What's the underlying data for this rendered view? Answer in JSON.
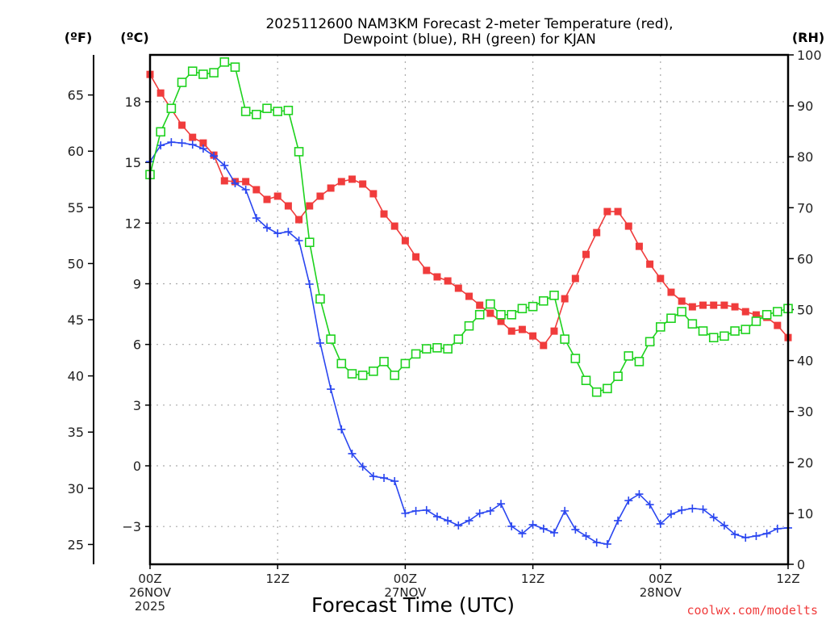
{
  "chart_data": {
    "type": "line",
    "title_lines": [
      "2025112600 NAM3KM Forecast 2-meter Temperature (red),",
      "Dewpoint (blue), RH (green) for KJAN"
    ],
    "xlabel": "Forecast Time (UTC)",
    "credit": "coolwx.com/modelts",
    "axis_units": {
      "left_outer": "(ºF)",
      "left_inner": "(ºC)",
      "right": "(RH)"
    },
    "x": {
      "unit": "hours since 2025-11-26 00Z",
      "range": [
        0,
        60
      ],
      "ticks": [
        {
          "hour": 0,
          "lines": [
            "00Z",
            "26NOV",
            "2025"
          ]
        },
        {
          "hour": 12,
          "lines": [
            "12Z"
          ]
        },
        {
          "hour": 24,
          "lines": [
            "00Z",
            "27NOV"
          ]
        },
        {
          "hour": 36,
          "lines": [
            "12Z"
          ]
        },
        {
          "hour": 48,
          "lines": [
            "00Z",
            "28NOV"
          ]
        },
        {
          "hour": 60,
          "lines": [
            "12Z"
          ]
        }
      ]
    },
    "y_celsius": {
      "range": [
        -4.9,
        20.2
      ],
      "ticks": [
        18,
        15,
        12,
        9,
        6,
        3,
        0,
        -3
      ],
      "tick_labels": [
        "18",
        "15",
        "12",
        "9",
        "6",
        "3",
        "0",
        "−3"
      ]
    },
    "y_fahrenheit": {
      "ticks": [
        65,
        60,
        55,
        50,
        45,
        40,
        35,
        30,
        25
      ],
      "tick_labels": [
        "65",
        "60",
        "55",
        "50",
        "45",
        "40",
        "35",
        "30",
        "25"
      ]
    },
    "y_rh": {
      "range": [
        0,
        100
      ],
      "ticks": [
        100,
        90,
        80,
        70,
        60,
        50,
        40,
        30,
        20,
        10,
        0
      ],
      "tick_labels": [
        "100",
        "90",
        "80",
        "70",
        "60",
        "50",
        "40",
        "30",
        "20",
        "10",
        "0"
      ]
    },
    "grid": true,
    "series": [
      {
        "name": "Temperature",
        "unit": "C",
        "color": "#f03c3c",
        "marker": "filled-square",
        "values": [
          19.35,
          18.43,
          17.64,
          16.84,
          16.24,
          15.96,
          15.36,
          14.09,
          14.05,
          14.05,
          13.65,
          13.17,
          13.33,
          12.85,
          12.17,
          12.85,
          13.33,
          13.73,
          14.05,
          14.17,
          13.93,
          13.45,
          12.45,
          11.85,
          11.13,
          10.33,
          9.66,
          9.34,
          9.14,
          8.78,
          8.38,
          7.94,
          7.54,
          7.14,
          6.66,
          6.74,
          6.42,
          5.95,
          6.66,
          8.26,
          9.26,
          10.45,
          11.53,
          12.57,
          12.57,
          11.85,
          10.85,
          9.97,
          9.26,
          8.58,
          8.14,
          7.86,
          7.94,
          7.94,
          7.94,
          7.86,
          7.62,
          7.46,
          7.34,
          6.94,
          6.34
        ]
      },
      {
        "name": "Dewpoint",
        "unit": "C",
        "color": "#2a46f0",
        "marker": "plus",
        "values": [
          15.04,
          15.84,
          16.0,
          15.96,
          15.88,
          15.68,
          15.32,
          14.85,
          13.97,
          13.65,
          12.25,
          11.77,
          11.49,
          11.57,
          11.13,
          8.98,
          6.07,
          3.79,
          1.8,
          0.6,
          -0.04,
          -0.52,
          -0.6,
          -0.76,
          -2.35,
          -2.23,
          -2.19,
          -2.51,
          -2.71,
          -2.95,
          -2.71,
          -2.35,
          -2.23,
          -1.88,
          -2.99,
          -3.35,
          -2.91,
          -3.11,
          -3.31,
          -2.23,
          -3.15,
          -3.47,
          -3.79,
          -3.87,
          -2.71,
          -1.72,
          -1.4,
          -1.92,
          -2.87,
          -2.39,
          -2.19,
          -2.11,
          -2.15,
          -2.55,
          -2.95,
          -3.39,
          -3.55,
          -3.47,
          -3.35,
          -3.11,
          -3.07
        ]
      },
      {
        "name": "RH",
        "unit": "%",
        "color": "#1ed21e",
        "marker": "open-square",
        "values": [
          76.5,
          84.9,
          89.5,
          94.6,
          96.8,
          96.2,
          96.5,
          98.6,
          97.6,
          88.9,
          88.3,
          89.5,
          88.9,
          89.1,
          81.0,
          63.2,
          52.1,
          44.2,
          39.4,
          37.4,
          37.1,
          37.9,
          39.8,
          37.1,
          39.4,
          41.3,
          42.3,
          42.5,
          42.3,
          44.2,
          46.8,
          49.0,
          51.1,
          49.0,
          49.0,
          50.2,
          50.6,
          51.7,
          52.8,
          44.2,
          40.4,
          36.1,
          33.8,
          34.5,
          36.9,
          40.9,
          39.8,
          43.7,
          46.6,
          48.3,
          49.6,
          47.2,
          45.8,
          44.5,
          44.8,
          45.8,
          46.1,
          47.7,
          49.0,
          49.6,
          50.2
        ]
      }
    ]
  }
}
